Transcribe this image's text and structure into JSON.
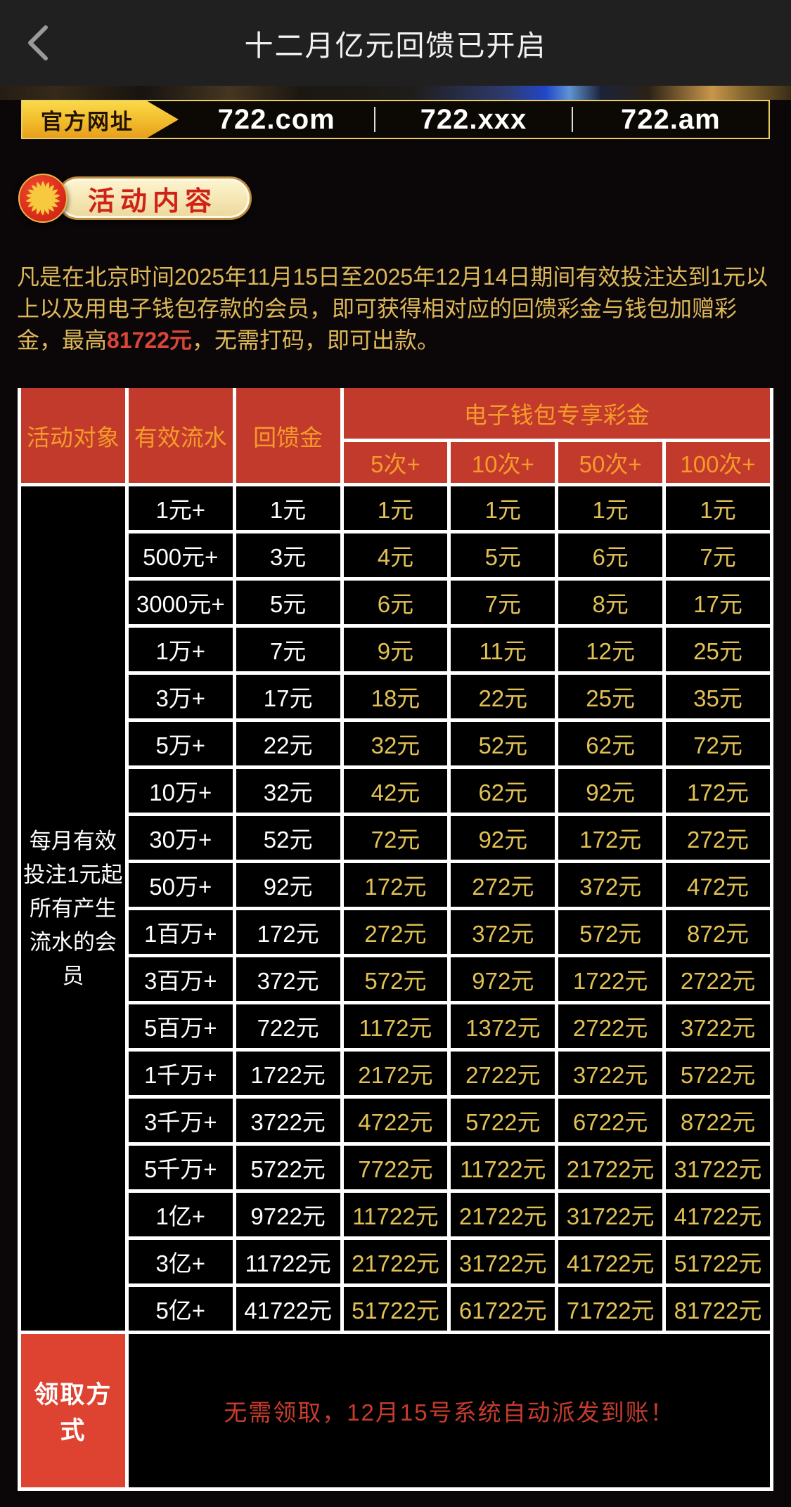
{
  "header": {
    "title": "十二月亿元回馈已开启",
    "back_icon": "chevron-left"
  },
  "official_bar": {
    "label": "官方网址",
    "urls": [
      "722.com",
      "722.xxx",
      "722.am"
    ]
  },
  "section_badge": {
    "label": "活动内容",
    "icon": "sun-icon"
  },
  "intro": {
    "before": "凡是在北京时间2025年11月15日至2025年12月14日期间有效投注达到1元以上以及用电子钱包存款的会员，即可获得相对应的回馈彩金与钱包加赠彩金，最高",
    "highlight": "81722元",
    "after": "，无需打码，即可出款。"
  },
  "table": {
    "headers": {
      "audience": "活动对象",
      "turnover": "有效流水",
      "rebate": "回馈金",
      "wallet_group": "电子钱包专享彩金",
      "wallet_tiers": [
        "5次+",
        "10次+",
        "50次+",
        "100次+"
      ]
    },
    "audience_text": "每月有效投注1元起所有产生流水的会员",
    "rows": [
      [
        "1元+",
        "1元",
        "1元",
        "1元",
        "1元",
        "1元"
      ],
      [
        "500元+",
        "3元",
        "4元",
        "5元",
        "6元",
        "7元"
      ],
      [
        "3000元+",
        "5元",
        "6元",
        "7元",
        "8元",
        "17元"
      ],
      [
        "1万+",
        "7元",
        "9元",
        "11元",
        "12元",
        "25元"
      ],
      [
        "3万+",
        "17元",
        "18元",
        "22元",
        "25元",
        "35元"
      ],
      [
        "5万+",
        "22元",
        "32元",
        "52元",
        "62元",
        "72元"
      ],
      [
        "10万+",
        "32元",
        "42元",
        "62元",
        "92元",
        "172元"
      ],
      [
        "30万+",
        "52元",
        "72元",
        "92元",
        "172元",
        "272元"
      ],
      [
        "50万+",
        "92元",
        "172元",
        "272元",
        "372元",
        "472元"
      ],
      [
        "1百万+",
        "172元",
        "272元",
        "372元",
        "572元",
        "872元"
      ],
      [
        "3百万+",
        "372元",
        "572元",
        "972元",
        "1722元",
        "2722元"
      ],
      [
        "5百万+",
        "722元",
        "1172元",
        "1372元",
        "2722元",
        "3722元"
      ],
      [
        "1千万+",
        "1722元",
        "2172元",
        "2722元",
        "3722元",
        "5722元"
      ],
      [
        "3千万+",
        "3722元",
        "4722元",
        "5722元",
        "6722元",
        "8722元"
      ],
      [
        "5千万+",
        "5722元",
        "7722元",
        "11722元",
        "21722元",
        "31722元"
      ],
      [
        "1亿+",
        "9722元",
        "11722元",
        "21722元",
        "31722元",
        "41722元"
      ],
      [
        "3亿+",
        "11722元",
        "21722元",
        "31722元",
        "41722元",
        "51722元"
      ],
      [
        "5亿+",
        "41722元",
        "51722元",
        "61722元",
        "71722元",
        "81722元"
      ]
    ],
    "claim": {
      "label": "领取方式",
      "text": "无需领取，12月15号系统自动派发到账！"
    }
  },
  "colors": {
    "appbar_bg": "#212021",
    "page_bg": "#0b0607",
    "gold_border": "#e9cf63",
    "gold_text": "#ddb85a",
    "table_header_red": "#c23a2b",
    "table_header_text": "#f49b2b",
    "wallet_value_gold": "#e2c155",
    "claim_label_red": "#de4331",
    "claim_text_red": "#c73c2d",
    "highlight_red": "#d8463a"
  }
}
